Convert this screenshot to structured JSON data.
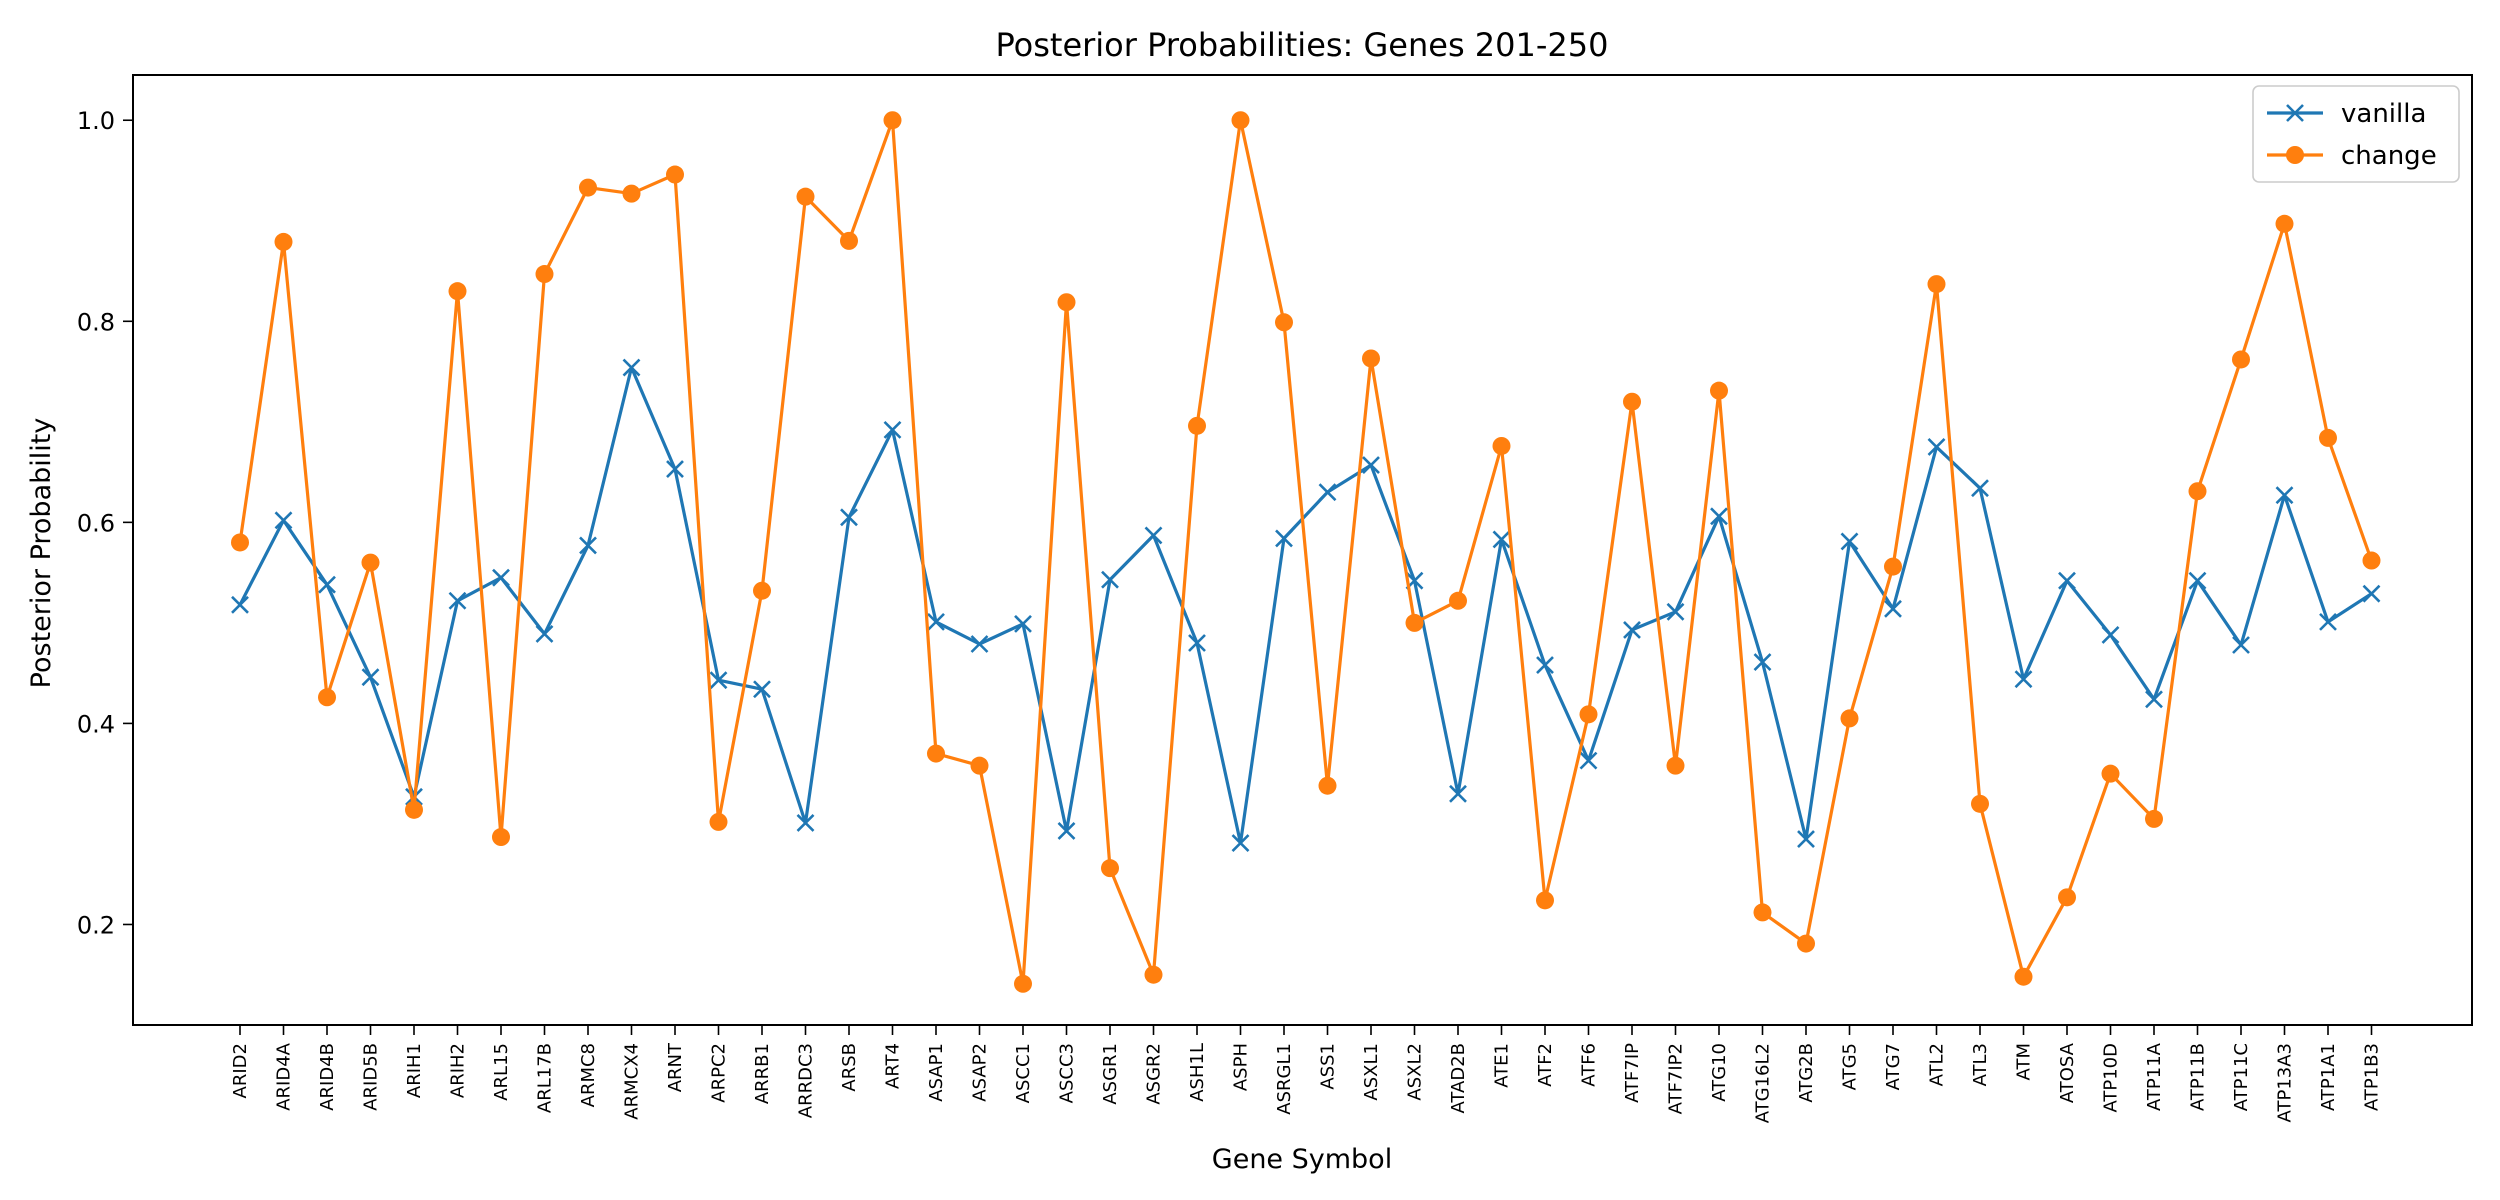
{
  "chart_data": {
    "type": "line",
    "title": "Posterior Probabilities: Genes 201-250",
    "xlabel": "Gene Symbol",
    "ylabel": "Posterior Probability",
    "ylim": [
      0.1,
      1.045
    ],
    "yticks": [
      0.2,
      0.4,
      0.6,
      0.8,
      1.0
    ],
    "ytick_labels": [
      "0.2",
      "0.4",
      "0.6",
      "0.8",
      "1.0"
    ],
    "grid": false,
    "legend_position": "top-right",
    "categories": [
      "ARID2",
      "ARID4A",
      "ARID4B",
      "ARID5B",
      "ARIH1",
      "ARIH2",
      "ARL15",
      "ARL17B",
      "ARMC8",
      "ARMCX4",
      "ARNT",
      "ARPC2",
      "ARRB1",
      "ARRDC3",
      "ARSB",
      "ART4",
      "ASAP1",
      "ASAP2",
      "ASCC1",
      "ASCC3",
      "ASGR1",
      "ASGR2",
      "ASH1L",
      "ASPH",
      "ASRGL1",
      "ASS1",
      "ASXL1",
      "ASXL2",
      "ATAD2B",
      "ATE1",
      "ATF2",
      "ATF6",
      "ATF7IP",
      "ATF7IP2",
      "ATG10",
      "ATG16L2",
      "ATG2B",
      "ATG5",
      "ATG7",
      "ATL2",
      "ATL3",
      "ATM",
      "ATOSA",
      "ATP10D",
      "ATP11A",
      "ATP11B",
      "ATP11C",
      "ATP13A3",
      "ATP1A1",
      "ATP1B3"
    ],
    "series": [
      {
        "name": "vanilla",
        "color": "#1f77b4",
        "marker": "x",
        "values": [
          0.518,
          0.602,
          0.538,
          0.446,
          0.327,
          0.522,
          0.545,
          0.489,
          0.577,
          0.754,
          0.653,
          0.443,
          0.434,
          0.301,
          0.605,
          0.692,
          0.501,
          0.479,
          0.499,
          0.293,
          0.543,
          0.587,
          0.48,
          0.281,
          0.584,
          0.63,
          0.657,
          0.542,
          0.33,
          0.583,
          0.458,
          0.363,
          0.493,
          0.511,
          0.606,
          0.461,
          0.285,
          0.581,
          0.514,
          0.675,
          0.634,
          0.444,
          0.542,
          0.488,
          0.424,
          0.542,
          0.478,
          0.627,
          0.501,
          0.529
        ]
      },
      {
        "name": "change",
        "color": "#ff7f0e",
        "marker": "o",
        "values": [
          0.58,
          0.879,
          0.426,
          0.56,
          0.314,
          0.83,
          0.287,
          0.847,
          0.933,
          0.927,
          0.946,
          0.302,
          0.532,
          0.924,
          0.88,
          1.0,
          0.37,
          0.358,
          0.141,
          0.819,
          0.256,
          0.15,
          0.696,
          1.0,
          0.799,
          0.338,
          0.763,
          0.5,
          0.522,
          0.676,
          0.224,
          0.409,
          0.72,
          0.358,
          0.731,
          0.212,
          0.181,
          0.405,
          0.556,
          0.837,
          0.32,
          0.148,
          0.227,
          0.35,
          0.305,
          0.631,
          0.762,
          0.897,
          0.684,
          0.562
        ]
      }
    ]
  }
}
